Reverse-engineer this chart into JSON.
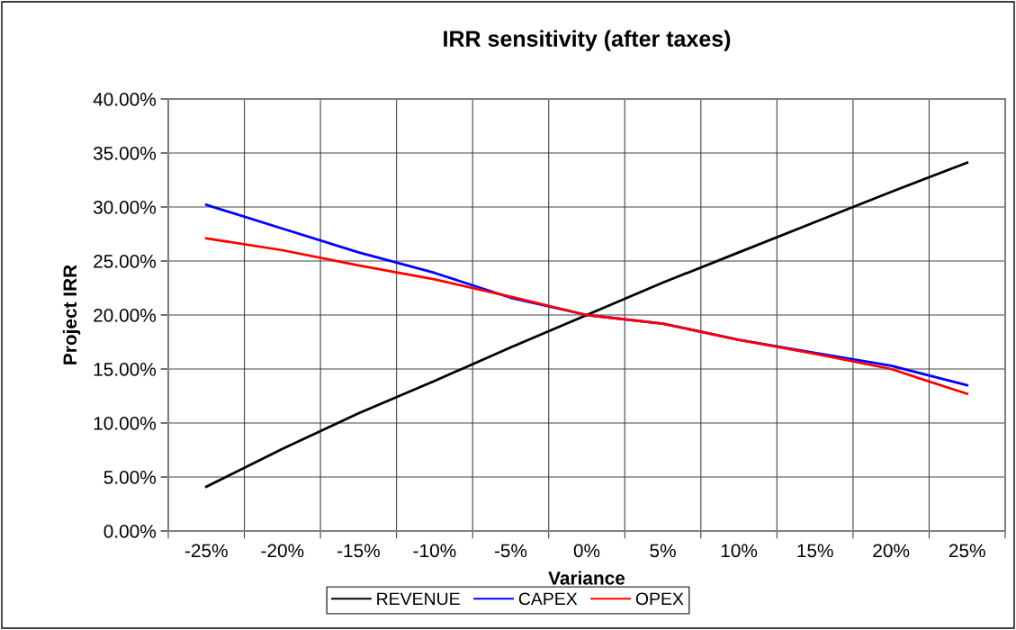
{
  "chart_data": {
    "type": "line",
    "title": "IRR sensitivity (after taxes)",
    "xlabel": "Variance",
    "ylabel": "Project IRR",
    "categories": [
      "-25%",
      "-20%",
      "-15%",
      "-10%",
      "-5%",
      "0%",
      "5%",
      "10%",
      "15%",
      "20%",
      "25%"
    ],
    "series": [
      {
        "name": "REVENUE",
        "color": "#000000",
        "values": [
          4.1,
          7.6,
          10.9,
          13.9,
          17.0,
          20.0,
          23.0,
          25.8,
          28.6,
          31.4,
          34.1
        ]
      },
      {
        "name": "CAPEX",
        "color": "#0000ff",
        "values": [
          30.2,
          28.0,
          25.8,
          23.9,
          21.6,
          20.0,
          19.2,
          17.7,
          16.5,
          15.3,
          13.5
        ]
      },
      {
        "name": "OPEX",
        "color": "#ff0000",
        "values": [
          27.1,
          26.0,
          24.6,
          23.3,
          21.7,
          20.0,
          19.2,
          17.7,
          16.4,
          15.0,
          12.7
        ]
      }
    ],
    "ylim": [
      0,
      40
    ],
    "yticks": [
      {
        "value": 0,
        "label": "0.00%"
      },
      {
        "value": 5,
        "label": "5.00%"
      },
      {
        "value": 10,
        "label": "10.00%"
      },
      {
        "value": 15,
        "label": "15.00%"
      },
      {
        "value": 20,
        "label": "20.00%"
      },
      {
        "value": 25,
        "label": "25.00%"
      },
      {
        "value": 30,
        "label": "30.00%"
      },
      {
        "value": 35,
        "label": "35.00%"
      },
      {
        "value": 40,
        "label": "40.00%"
      }
    ],
    "grid": true,
    "legend": "bottom",
    "marker": "none",
    "line_style": "solid"
  }
}
